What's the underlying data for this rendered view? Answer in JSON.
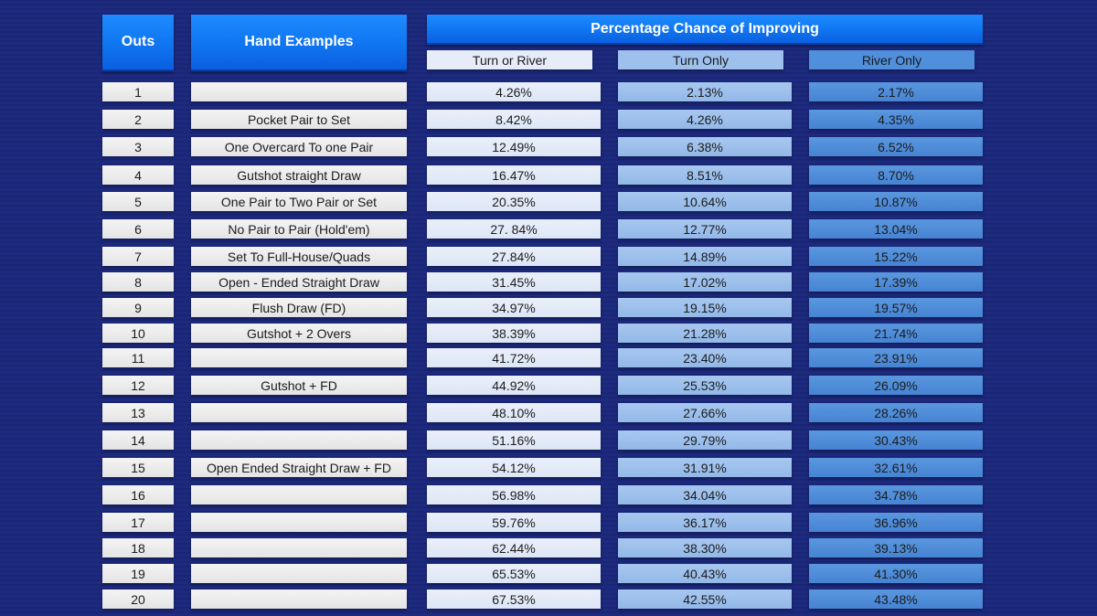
{
  "headers": {
    "outs": "Outs",
    "hand": "Hand Examples",
    "pct": "Percentage Chance of Improving",
    "turn_river": "Turn or River",
    "turn_only": "Turn Only",
    "river_only": "River Only"
  },
  "rows": [
    {
      "outs": "1",
      "hand": "",
      "tr": "4.26%",
      "to": "2.13%",
      "ro": "2.17%"
    },
    {
      "outs": "2",
      "hand": "Pocket Pair to Set",
      "tr": "8.42%",
      "to": "4.26%",
      "ro": "4.35%"
    },
    {
      "outs": "3",
      "hand": "One Overcard To one Pair",
      "tr": "12.49%",
      "to": "6.38%",
      "ro": "6.52%"
    },
    {
      "outs": "4",
      "hand": "Gutshot straight Draw",
      "tr": "16.47%",
      "to": "8.51%",
      "ro": "8.70%"
    },
    {
      "outs": "5",
      "hand": "One Pair to Two Pair or Set",
      "tr": "20.35%",
      "to": "10.64%",
      "ro": "10.87%"
    },
    {
      "outs": "6",
      "hand": "No Pair to Pair (Hold'em)",
      "tr": "27. 84%",
      "to": "12.77%",
      "ro": "13.04%"
    },
    {
      "outs": "7",
      "hand": "Set To Full-House/Quads",
      "tr": "27.84%",
      "to": "14.89%",
      "ro": "15.22%"
    },
    {
      "outs": "8",
      "hand": "Open - Ended Straight Draw",
      "tr": "31.45%",
      "to": "17.02%",
      "ro": "17.39%"
    },
    {
      "outs": "9",
      "hand": "Flush Draw (FD)",
      "tr": "34.97%",
      "to": "19.15%",
      "ro": "19.57%"
    },
    {
      "outs": "10",
      "hand": "Gutshot + 2 Overs",
      "tr": "38.39%",
      "to": "21.28%",
      "ro": "21.74%"
    },
    {
      "outs": "11",
      "hand": "",
      "tr": "41.72%",
      "to": "23.40%",
      "ro": "23.91%"
    },
    {
      "outs": "12",
      "hand": "Gutshot + FD",
      "tr": "44.92%",
      "to": "25.53%",
      "ro": "26.09%"
    },
    {
      "outs": "13",
      "hand": "",
      "tr": "48.10%",
      "to": "27.66%",
      "ro": "28.26%"
    },
    {
      "outs": "14",
      "hand": "",
      "tr": "51.16%",
      "to": "29.79%",
      "ro": "30.43%"
    },
    {
      "outs": "15",
      "hand": "Open Ended Straight Draw + FD",
      "tr": "54.12%",
      "to": "31.91%",
      "ro": "32.61%"
    },
    {
      "outs": "16",
      "hand": "",
      "tr": "56.98%",
      "to": "34.04%",
      "ro": "34.78%"
    },
    {
      "outs": "17",
      "hand": "",
      "tr": "59.76%",
      "to": "36.17%",
      "ro": "36.96%"
    },
    {
      "outs": "18",
      "hand": "",
      "tr": "62.44%",
      "to": "38.30%",
      "ro": "39.13%"
    },
    {
      "outs": "19",
      "hand": "",
      "tr": "65.53%",
      "to": "40.43%",
      "ro": "41.30%"
    },
    {
      "outs": "20",
      "hand": "",
      "tr": "67.53%",
      "to": "42.55%",
      "ro": "43.48%"
    }
  ]
}
